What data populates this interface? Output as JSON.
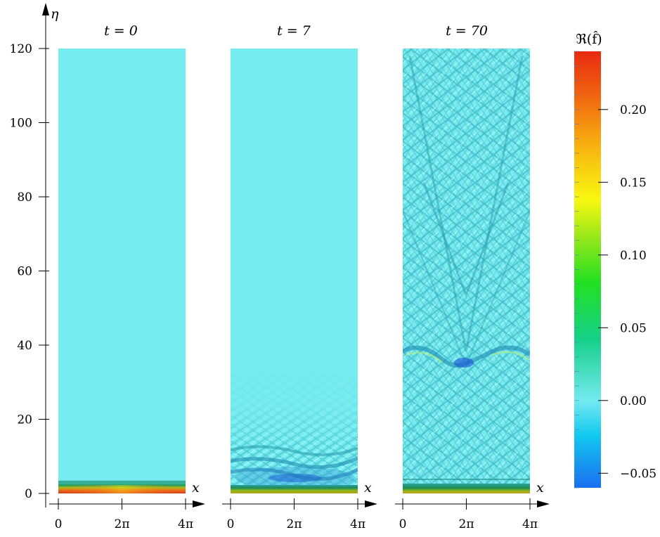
{
  "chart_data": {
    "type": "heatmap",
    "ylabel": "η",
    "xlabel": "x",
    "ylim": [
      0,
      120
    ],
    "yticks": [
      {
        "value": 0,
        "label": "0"
      },
      {
        "value": 20,
        "label": "20"
      },
      {
        "value": 40,
        "label": "40"
      },
      {
        "value": 60,
        "label": "60"
      },
      {
        "value": 80,
        "label": "80"
      },
      {
        "value": 100,
        "label": "100"
      },
      {
        "value": 120,
        "label": "120"
      }
    ],
    "xticks": [
      {
        "value": 0,
        "label": "0"
      },
      {
        "value": 2,
        "label": "2π"
      },
      {
        "value": 4,
        "label": "4π"
      }
    ],
    "panels": [
      {
        "title": "t = 0",
        "pattern": "boundary-layer"
      },
      {
        "title": "t = 7",
        "pattern": "near-wall-waves"
      },
      {
        "title": "t = 70",
        "pattern": "wave-field"
      }
    ],
    "colorbar": {
      "label": "ℜ(f̂)",
      "range": [
        -0.06,
        0.24
      ],
      "ticks": [
        {
          "value": 0.2,
          "label": "0.20"
        },
        {
          "value": 0.15,
          "label": "0.15"
        },
        {
          "value": 0.1,
          "label": "0.10"
        },
        {
          "value": 0.05,
          "label": "0.05"
        },
        {
          "value": 0.0,
          "label": "0.00"
        },
        {
          "value": -0.05,
          "label": "−0.05"
        }
      ],
      "colors": [
        "#1a6ff0",
        "#12c8f0",
        "#74eaf0",
        "#16d089",
        "#22e022",
        "#9ee81a",
        "#f8f810",
        "#f8b410",
        "#f06410",
        "#e82a10"
      ]
    },
    "background_color": "#76ecf0"
  }
}
